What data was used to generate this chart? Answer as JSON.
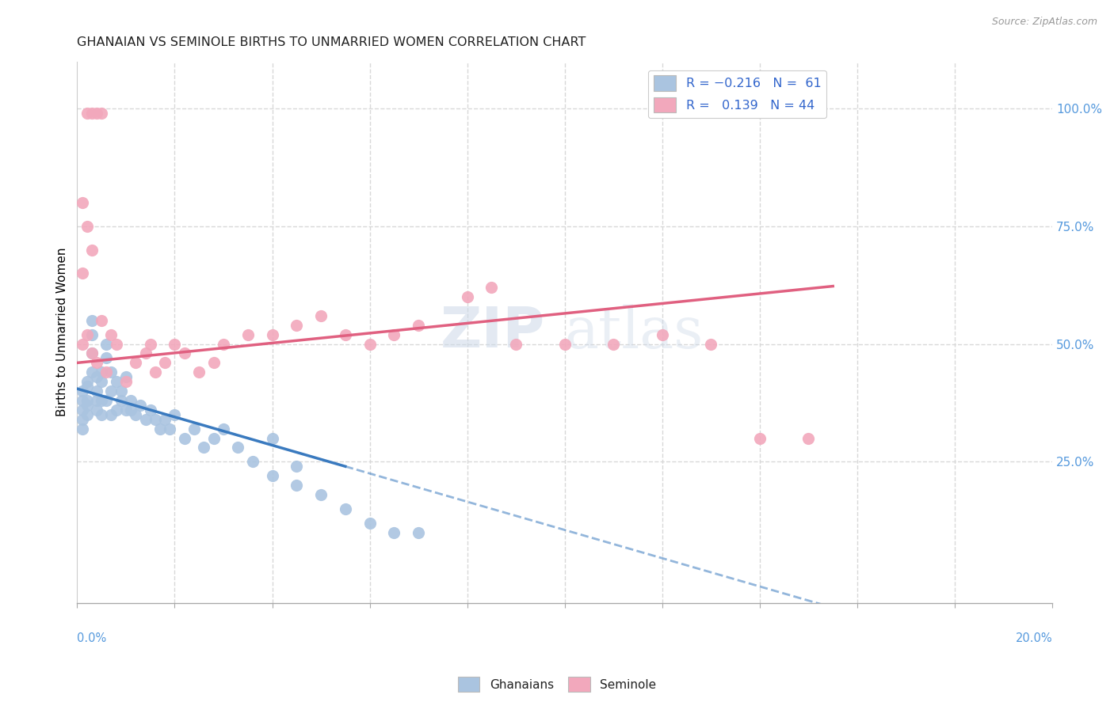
{
  "title": "GHANAIAN VS SEMINOLE BIRTHS TO UNMARRIED WOMEN CORRELATION CHART",
  "source": "Source: ZipAtlas.com",
  "ylabel": "Births to Unmarried Women",
  "blue_color": "#aac4e0",
  "pink_color": "#f2a8bc",
  "blue_line_color": "#3a7abf",
  "pink_line_color": "#e06080",
  "background_color": "#ffffff",
  "grid_color": "#d8d8d8",
  "xlim": [
    0.0,
    0.2
  ],
  "ylim": [
    -0.05,
    1.1
  ],
  "right_yticks": [
    0.25,
    0.5,
    0.75,
    1.0
  ],
  "right_yticklabels": [
    "25.0%",
    "50.0%",
    "75.0%",
    "100.0%"
  ],
  "ghanaian_x": [
    0.001,
    0.001,
    0.001,
    0.001,
    0.001,
    0.002,
    0.002,
    0.002,
    0.002,
    0.002,
    0.003,
    0.003,
    0.003,
    0.003,
    0.004,
    0.004,
    0.004,
    0.004,
    0.005,
    0.005,
    0.005,
    0.005,
    0.006,
    0.006,
    0.006,
    0.007,
    0.007,
    0.007,
    0.008,
    0.008,
    0.009,
    0.009,
    0.01,
    0.01,
    0.011,
    0.011,
    0.012,
    0.013,
    0.014,
    0.015,
    0.016,
    0.017,
    0.018,
    0.019,
    0.02,
    0.022,
    0.024,
    0.026,
    0.028,
    0.03,
    0.033,
    0.036,
    0.04,
    0.04,
    0.045,
    0.045,
    0.05,
    0.055,
    0.06,
    0.065,
    0.07
  ],
  "ghanaian_y": [
    0.36,
    0.38,
    0.4,
    0.32,
    0.34,
    0.38,
    0.42,
    0.35,
    0.37,
    0.41,
    0.44,
    0.48,
    0.52,
    0.55,
    0.43,
    0.38,
    0.36,
    0.4,
    0.42,
    0.44,
    0.38,
    0.35,
    0.47,
    0.5,
    0.38,
    0.4,
    0.44,
    0.35,
    0.42,
    0.36,
    0.38,
    0.4,
    0.43,
    0.36,
    0.38,
    0.36,
    0.35,
    0.37,
    0.34,
    0.36,
    0.34,
    0.32,
    0.34,
    0.32,
    0.35,
    0.3,
    0.32,
    0.28,
    0.3,
    0.32,
    0.28,
    0.25,
    0.3,
    0.22,
    0.24,
    0.2,
    0.18,
    0.15,
    0.12,
    0.1,
    0.1
  ],
  "seminole_x": [
    0.001,
    0.002,
    0.003,
    0.004,
    0.005,
    0.006,
    0.007,
    0.008,
    0.01,
    0.012,
    0.014,
    0.015,
    0.016,
    0.018,
    0.02,
    0.022,
    0.025,
    0.028,
    0.03,
    0.035,
    0.04,
    0.045,
    0.05,
    0.055,
    0.06,
    0.065,
    0.07,
    0.08,
    0.085,
    0.09,
    0.1,
    0.11,
    0.12,
    0.13,
    0.14,
    0.15,
    0.002,
    0.003,
    0.004,
    0.005,
    0.001,
    0.002,
    0.003,
    0.001
  ],
  "seminole_y": [
    0.5,
    0.52,
    0.48,
    0.46,
    0.55,
    0.44,
    0.52,
    0.5,
    0.42,
    0.46,
    0.48,
    0.5,
    0.44,
    0.46,
    0.5,
    0.48,
    0.44,
    0.46,
    0.5,
    0.52,
    0.52,
    0.54,
    0.56,
    0.52,
    0.5,
    0.52,
    0.54,
    0.6,
    0.62,
    0.5,
    0.5,
    0.5,
    0.52,
    0.5,
    0.3,
    0.3,
    0.99,
    0.99,
    0.99,
    0.99,
    0.8,
    0.75,
    0.7,
    0.65
  ],
  "blue_solid_xend": 0.055,
  "blue_intercept": 0.405,
  "blue_slope": -3.0,
  "pink_intercept": 0.46,
  "pink_slope": 1.05
}
